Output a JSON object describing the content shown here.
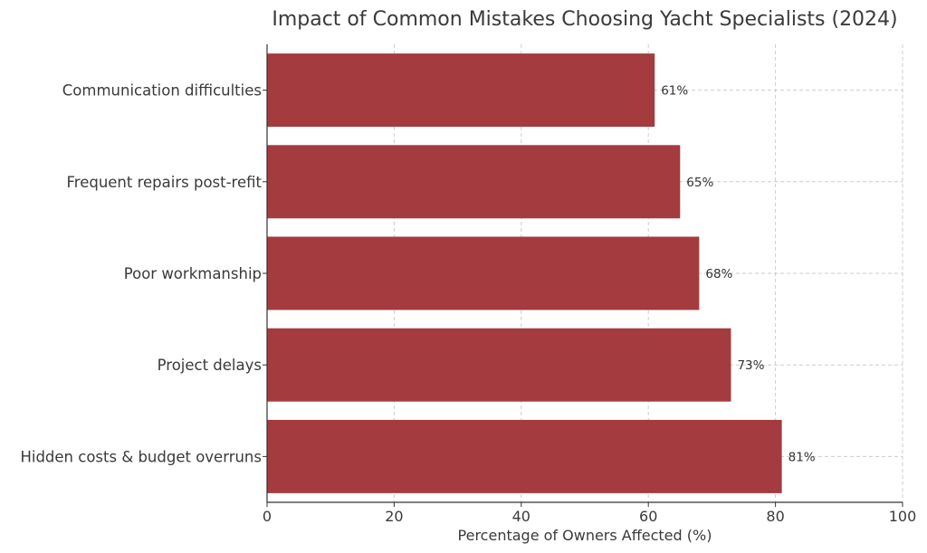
{
  "chart_data": {
    "type": "bar",
    "orientation": "horizontal",
    "title": "Impact of Common Mistakes Choosing Yacht Specialists (2024)",
    "xlabel": "Percentage of Owners Affected (%)",
    "ylabel": "",
    "categories": [
      "Communication difficulties",
      "Frequent repairs post-refit",
      "Poor workmanship",
      "Project delays",
      "Hidden costs & budget overruns"
    ],
    "values": [
      61,
      65,
      68,
      73,
      81
    ],
    "data_labels": [
      "61%",
      "65%",
      "68%",
      "73%",
      "81%"
    ],
    "xlim": [
      0,
      100
    ],
    "xticks": [
      0,
      20,
      40,
      60,
      80,
      100
    ],
    "grid": true,
    "bar_color": "#a33b3f"
  }
}
